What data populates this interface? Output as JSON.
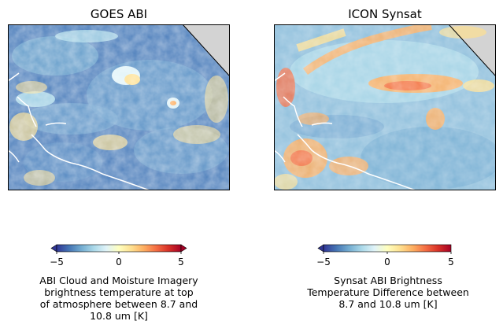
{
  "panels": [
    {
      "title": "GOES ABI"
    },
    {
      "title": "ICON Synsat"
    }
  ],
  "colorbars": [
    {
      "ticks": [
        "−5",
        "0",
        "5"
      ],
      "range": [
        -5,
        5
      ],
      "colormap": "RdYlBu_r",
      "label_lines": [
        "ABI Cloud and Moisture Imagery",
        "brightness temperature at top",
        "of atmosphere between  8.7 and",
        "10.8 um [K]"
      ]
    },
    {
      "ticks": [
        "−5",
        "0",
        "5"
      ],
      "range": [
        -5,
        5
      ],
      "colormap": "RdYlBu_r",
      "label_lines": [
        "Synsat ABI Brightness",
        "Temperature Difference between",
        "8.7 and 10.8 um [K]"
      ]
    }
  ],
  "colors": {
    "neg_dark": "#313695",
    "neg": "#4575b4",
    "neg_light": "#74add1",
    "pale_blue": "#abd9e9",
    "near_zero": "#e0f3f8",
    "pale_yellow": "#fee090",
    "orange": "#fdae61",
    "red_orange": "#f46d43",
    "red": "#d73027",
    "dark_red": "#a50026",
    "outside_domain": "#d3d3d3",
    "coastline": "#ffffff"
  }
}
